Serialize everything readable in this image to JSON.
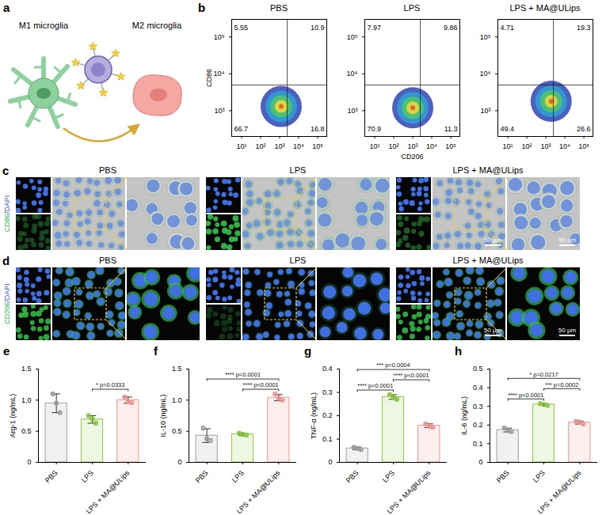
{
  "diagram": {
    "panel_label": "a",
    "from": "M1 microglia",
    "to": "M2 microglia"
  },
  "images": [
    {
      "panel_label": "c",
      "label_parts": [
        "CD86",
        "/DAPI"
      ],
      "groups": [
        "PBS",
        "LPS",
        "LPS + MA@ULips"
      ],
      "scale_bar": "50 μm"
    },
    {
      "panel_label": "d",
      "label_parts": [
        "CD206",
        "/DAPI"
      ],
      "groups": [
        "PBS",
        "LPS",
        "LPS + MA@ULips"
      ],
      "scale_bar": "50 μm"
    }
  ],
  "chart_data": [
    {
      "type": "scatter",
      "panel_label": "b",
      "title": "PBS",
      "y_label": "CD86",
      "log": true,
      "xlim": [
        3,
        300000
      ],
      "ylim": [
        200,
        300000
      ],
      "xticks": [
        {
          "value": 10,
          "label": "10¹"
        },
        {
          "value": 100,
          "label": "10²"
        },
        {
          "value": 1000,
          "label": "10³"
        },
        {
          "value": 10000,
          "label": "10⁴"
        },
        {
          "value": 100000,
          "label": "10⁵"
        }
      ],
      "yticks": [
        {
          "value": 1000,
          "label": "10³"
        },
        {
          "value": 10000,
          "label": "10⁴"
        },
        {
          "value": 100000,
          "label": "10⁵"
        }
      ],
      "gates": {
        "x": 2500,
        "y": 5000
      },
      "population_center": {
        "x": 1200,
        "y": 1300
      },
      "quadrants": {
        "upper_left": 5.55,
        "upper_right": 10.9,
        "lower_left": 66.7,
        "lower_right": 16.8
      }
    },
    {
      "type": "scatter",
      "title": "LPS",
      "x_label": "CD206",
      "log": true,
      "xlim": [
        3,
        300000
      ],
      "ylim": [
        200,
        300000
      ],
      "xticks": [
        {
          "value": 10,
          "label": "10¹"
        },
        {
          "value": 100,
          "label": "10²"
        },
        {
          "value": 1000,
          "label": "10³"
        },
        {
          "value": 10000,
          "label": "10⁴"
        },
        {
          "value": 100000,
          "label": "10⁵"
        }
      ],
      "yticks": [
        {
          "value": 1000,
          "label": "10³"
        },
        {
          "value": 10000,
          "label": "10⁴"
        },
        {
          "value": 100000,
          "label": "10⁵"
        }
      ],
      "gates": {
        "x": 2500,
        "y": 5000
      },
      "population_center": {
        "x": 1000,
        "y": 1200
      },
      "quadrants": {
        "upper_left": 7.97,
        "upper_right": 9.86,
        "lower_left": 70.9,
        "lower_right": 11.3
      }
    },
    {
      "type": "scatter",
      "title": "LPS + MA@ULips",
      "log": true,
      "xlim": [
        3,
        300000
      ],
      "ylim": [
        200,
        300000
      ],
      "xticks": [
        {
          "value": 10,
          "label": "10¹"
        },
        {
          "value": 100,
          "label": "10²"
        },
        {
          "value": 1000,
          "label": "10³"
        },
        {
          "value": 10000,
          "label": "10⁴"
        },
        {
          "value": 100000,
          "label": "10⁵"
        }
      ],
      "yticks": [
        {
          "value": 1000,
          "label": "10³"
        },
        {
          "value": 10000,
          "label": "10⁴"
        },
        {
          "value": 100000,
          "label": "10⁵"
        }
      ],
      "gates": {
        "x": 2500,
        "y": 5000
      },
      "population_center": {
        "x": 1900,
        "y": 1800
      },
      "quadrants": {
        "upper_left": 4.71,
        "upper_right": 19.3,
        "lower_left": 49.4,
        "lower_right": 26.6
      }
    },
    {
      "type": "bar",
      "panel_label": "e",
      "y_label": "Arg-1 (ng/mL)",
      "categories": [
        "PBS",
        "LPS",
        "LPS + MA@ULips"
      ],
      "values": [
        0.95,
        0.69,
        1.0
      ],
      "errors": [
        0.15,
        0.06,
        0.05
      ],
      "points": [
        [
          1.1,
          0.95,
          0.8
        ],
        [
          0.75,
          0.7,
          0.63
        ],
        [
          1.05,
          0.98,
          0.96
        ]
      ],
      "colors": [
        "#9e9e9e",
        "#8cc63f",
        "#f0958f"
      ],
      "ylim": [
        0,
        1.5
      ],
      "yticks": [
        0,
        0.5,
        {
          "value": 1,
          "label": "1.0"
        },
        1.5
      ],
      "significance": [
        {
          "between": [
            "LPS",
            "LPS + MA@ULips"
          ],
          "stars": "*",
          "p": "p=0.0333"
        }
      ]
    },
    {
      "type": "bar",
      "panel_label": "f",
      "y_label": "IL-10 (ng/mL)",
      "categories": [
        "PBS",
        "LPS",
        "LPS + MA@ULips"
      ],
      "values": [
        0.43,
        0.45,
        1.04
      ],
      "errors": [
        0.11,
        0.02,
        0.05
      ],
      "points": [
        [
          0.55,
          0.38,
          0.35
        ],
        [
          0.47,
          0.45,
          0.44
        ],
        [
          1.1,
          1.03,
          1.0
        ]
      ],
      "colors": [
        "#9e9e9e",
        "#8cc63f",
        "#f0958f"
      ],
      "ylim": [
        0,
        1.5
      ],
      "yticks": [
        0,
        0.5,
        {
          "value": 1,
          "label": "1.0"
        },
        1.5
      ],
      "significance": [
        {
          "between": [
            "LPS",
            "LPS + MA@ULips"
          ],
          "stars": "****",
          "p": "p<0.0001"
        },
        {
          "between": [
            "PBS",
            "LPS + MA@ULips"
          ],
          "stars": "****",
          "p": "p<0.0001"
        }
      ]
    },
    {
      "type": "bar",
      "panel_label": "g",
      "y_label": "TNF-α (ng/mL)",
      "categories": [
        "PBS",
        "LPS",
        "LPS + MA@ULips"
      ],
      "values": [
        0.06,
        0.28,
        0.157
      ],
      "errors": [
        0.006,
        0.01,
        0.008
      ],
      "points": [
        [
          0.065,
          0.06,
          0.055
        ],
        [
          0.29,
          0.28,
          0.27
        ],
        [
          0.165,
          0.155,
          0.15
        ]
      ],
      "colors": [
        "#9e9e9e",
        "#8cc63f",
        "#f0958f"
      ],
      "ylim": [
        0,
        0.4
      ],
      "yticks": [
        0,
        0.1,
        0.2,
        0.3,
        0.4
      ],
      "significance": [
        {
          "between": [
            "PBS",
            "LPS"
          ],
          "stars": "****",
          "p": "p<0.0001"
        },
        {
          "between": [
            "LPS",
            "LPS + MA@ULips"
          ],
          "stars": "****",
          "p": "p<0.0001"
        },
        {
          "between": [
            "PBS",
            "LPS + MA@ULips"
          ],
          "stars": "***",
          "p": "p=0.0004"
        }
      ]
    },
    {
      "type": "bar",
      "panel_label": "h",
      "y_label": "IL-6 (ng/mL)",
      "categories": [
        "PBS",
        "LPS",
        "LPS + MA@ULips"
      ],
      "values": [
        0.173,
        0.31,
        0.213
      ],
      "errors": [
        0.01,
        0.005,
        0.008
      ],
      "points": [
        [
          0.185,
          0.17,
          0.165
        ],
        [
          0.315,
          0.31,
          0.305
        ],
        [
          0.22,
          0.215,
          0.205
        ]
      ],
      "colors": [
        "#9e9e9e",
        "#8cc63f",
        "#f0958f"
      ],
      "ylim": [
        0,
        0.5
      ],
      "yticks": [
        0,
        0.1,
        0.2,
        0.3,
        0.4,
        0.5
      ],
      "significance": [
        {
          "between": [
            "PBS",
            "LPS"
          ],
          "stars": "****",
          "p": "p<0.0001"
        },
        {
          "between": [
            "LPS",
            "LPS + MA@ULips"
          ],
          "stars": "***",
          "p": "p=0.0002"
        },
        {
          "between": [
            "PBS",
            "LPS + MA@ULips"
          ],
          "stars": "*",
          "p": "p=0.0217"
        }
      ]
    }
  ]
}
